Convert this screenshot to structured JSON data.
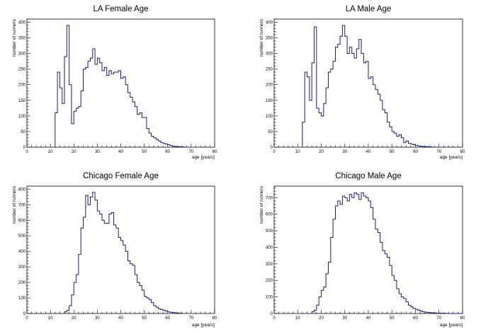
{
  "chart_data": [
    {
      "type": "bar",
      "histogram": true,
      "title": "LA Female Age",
      "xlabel": "age [years]",
      "ylabel": "number of runners",
      "xlim": [
        0,
        80
      ],
      "ylim": [
        0,
        410
      ],
      "xticks": [
        0,
        10,
        20,
        30,
        40,
        50,
        60,
        70,
        80
      ],
      "yticks": [
        0,
        50,
        100,
        150,
        200,
        250,
        300,
        350,
        400
      ],
      "bin_start": 12,
      "bin_width": 1,
      "values": [
        110,
        240,
        190,
        140,
        290,
        390,
        200,
        75,
        115,
        125,
        130,
        180,
        250,
        255,
        275,
        285,
        315,
        265,
        285,
        270,
        245,
        255,
        230,
        245,
        235,
        240,
        240,
        245,
        220,
        225,
        200,
        175,
        160,
        145,
        130,
        105,
        110,
        95,
        95,
        60,
        45,
        35,
        30,
        25,
        20,
        15,
        12,
        10,
        8,
        5,
        3,
        2,
        2,
        1,
        1,
        0,
        0
      ]
    },
    {
      "type": "bar",
      "histogram": true,
      "title": "LA Male Age",
      "xlabel": "age [years]",
      "ylabel": "number of runners",
      "xlim": [
        0,
        80
      ],
      "ylim": [
        0,
        410
      ],
      "xticks": [
        0,
        10,
        20,
        30,
        40,
        50,
        60,
        70,
        80
      ],
      "yticks": [
        0,
        50,
        100,
        150,
        200,
        250,
        300,
        350,
        400
      ],
      "bin_start": 12,
      "bin_width": 1,
      "values": [
        80,
        240,
        225,
        150,
        270,
        385,
        125,
        110,
        100,
        140,
        190,
        240,
        250,
        275,
        320,
        330,
        355,
        390,
        355,
        300,
        320,
        300,
        285,
        315,
        345,
        300,
        270,
        275,
        220,
        225,
        200,
        185,
        170,
        150,
        120,
        110,
        80,
        65,
        50,
        45,
        35,
        40,
        30,
        15,
        20,
        12,
        10,
        8,
        6,
        4,
        3,
        2,
        2,
        1,
        1,
        0,
        0,
        0,
        0
      ]
    },
    {
      "type": "bar",
      "histogram": true,
      "title": "Chicago Female Age",
      "xlabel": "age [years]",
      "ylabel": "number of runners",
      "xlim": [
        0,
        80
      ],
      "ylim": [
        0,
        820
      ],
      "xticks": [
        0,
        10,
        20,
        30,
        40,
        50,
        60,
        70,
        80
      ],
      "yticks": [
        0,
        100,
        200,
        300,
        400,
        500,
        600,
        700,
        800
      ],
      "bin_start": 16,
      "bin_width": 1,
      "values": [
        10,
        20,
        50,
        120,
        200,
        250,
        380,
        550,
        620,
        760,
        700,
        750,
        780,
        730,
        660,
        640,
        600,
        580,
        580,
        640,
        650,
        570,
        550,
        490,
        470,
        440,
        400,
        340,
        320,
        310,
        250,
        200,
        180,
        150,
        110,
        100,
        90,
        70,
        50,
        40,
        30,
        25,
        20,
        15,
        10,
        8,
        6,
        4,
        3,
        2
      ]
    },
    {
      "type": "bar",
      "histogram": true,
      "title": "Chicago Male Age",
      "xlabel": "age [years]",
      "ylabel": "number of runners",
      "xlim": [
        0,
        80
      ],
      "ylim": [
        0,
        770
      ],
      "xticks": [
        0,
        10,
        20,
        30,
        40,
        50,
        60,
        70,
        80
      ],
      "yticks": [
        0,
        100,
        200,
        300,
        400,
        500,
        600,
        700
      ],
      "bin_start": 16,
      "bin_width": 1,
      "values": [
        10,
        20,
        50,
        100,
        140,
        160,
        240,
        310,
        460,
        570,
        650,
        680,
        660,
        710,
        700,
        680,
        720,
        700,
        730,
        720,
        690,
        730,
        710,
        700,
        680,
        640,
        570,
        510,
        490,
        430,
        380,
        360,
        340,
        290,
        230,
        200,
        150,
        120,
        100,
        90,
        70,
        50,
        40,
        30,
        25,
        20,
        15,
        10,
        8,
        6,
        5,
        4,
        3,
        2,
        2,
        1,
        1,
        0,
        0,
        0,
        0,
        0,
        0,
        0
      ]
    }
  ]
}
